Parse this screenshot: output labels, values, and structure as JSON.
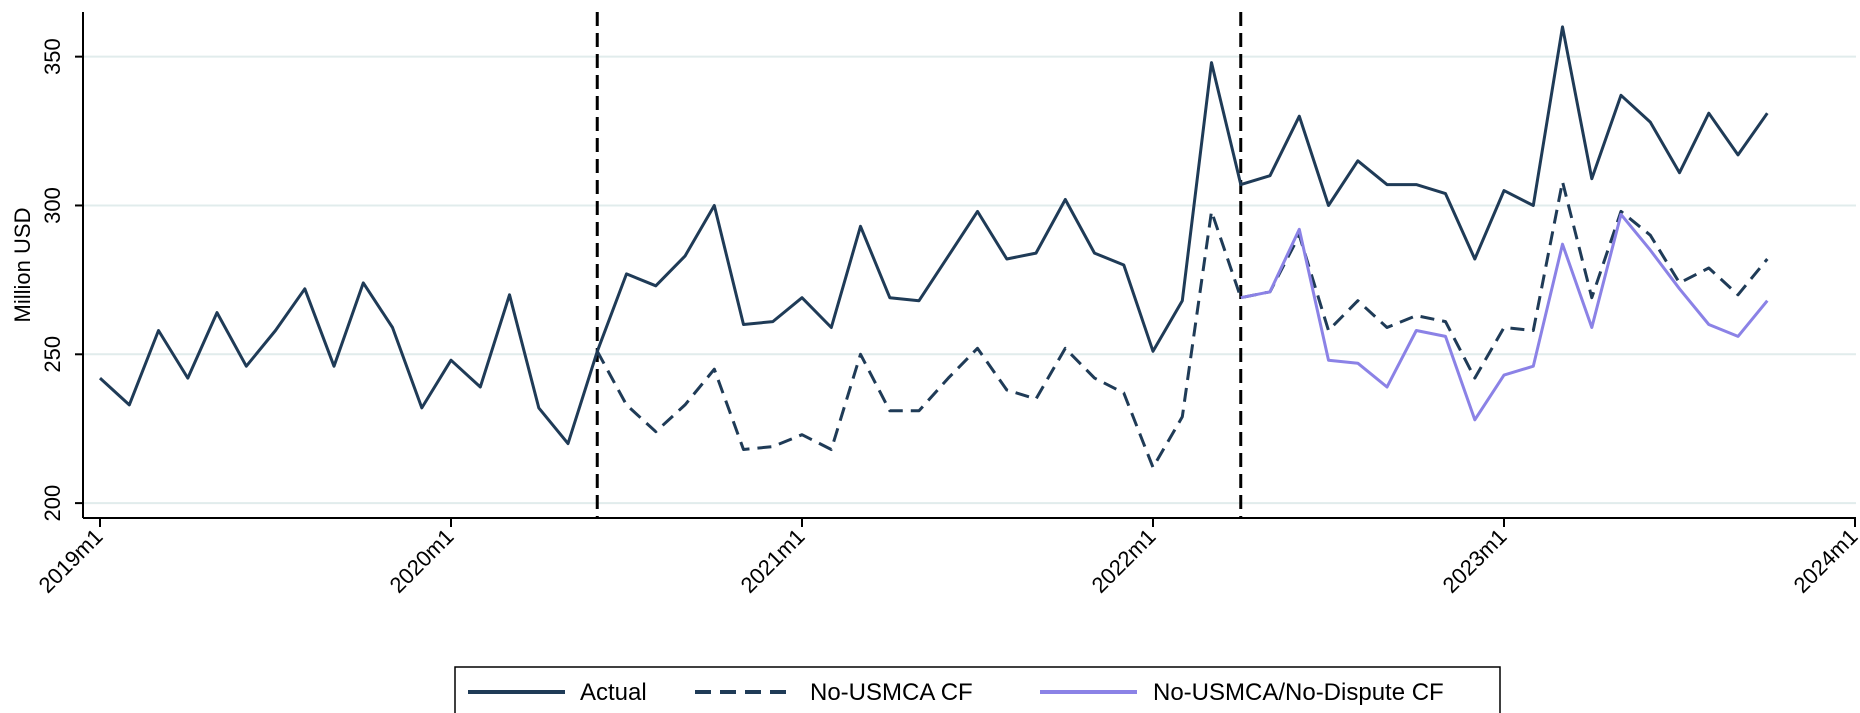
{
  "chart_data": {
    "type": "line",
    "ylabel": "Million USD",
    "xlabel": "",
    "ylim": [
      195,
      365
    ],
    "yticks": [
      200,
      250,
      300,
      350
    ],
    "xticks": [
      "2019m1",
      "2020m1",
      "2021m1",
      "2022m1",
      "2023m1",
      "2024m1"
    ],
    "xlim": [
      "2019m1",
      "2024m1"
    ],
    "grid": true,
    "legend_position": "bottom",
    "vertical_lines": [
      "2020m6",
      "2022m4"
    ],
    "series": [
      {
        "name": "Actual",
        "style": "solid",
        "color": "#1f3b57",
        "x": [
          "2019m1",
          "2019m2",
          "2019m3",
          "2019m4",
          "2019m5",
          "2019m6",
          "2019m7",
          "2019m8",
          "2019m9",
          "2019m10",
          "2019m11",
          "2019m12",
          "2020m1",
          "2020m2",
          "2020m3",
          "2020m4",
          "2020m5",
          "2020m6",
          "2020m7",
          "2020m8",
          "2020m9",
          "2020m10",
          "2020m11",
          "2020m12",
          "2021m1",
          "2021m2",
          "2021m3",
          "2021m4",
          "2021m5",
          "2021m6",
          "2021m7",
          "2021m8",
          "2021m9",
          "2021m10",
          "2021m11",
          "2021m12",
          "2022m1",
          "2022m2",
          "2022m3",
          "2022m4",
          "2022m5",
          "2022m6",
          "2022m7",
          "2022m8",
          "2022m9",
          "2022m10",
          "2022m11",
          "2022m12",
          "2023m1",
          "2023m2",
          "2023m3",
          "2023m4",
          "2023m5",
          "2023m6",
          "2023m7",
          "2023m8",
          "2023m9",
          "2023m10"
        ],
        "values": [
          242,
          233,
          258,
          242,
          264,
          246,
          258,
          272,
          246,
          274,
          259,
          232,
          248,
          239,
          270,
          232,
          220,
          251,
          277,
          273,
          283,
          300,
          260,
          261,
          269,
          259,
          293,
          269,
          268,
          283,
          298,
          282,
          284,
          302,
          284,
          280,
          251,
          268,
          348,
          307,
          310,
          330,
          300,
          315,
          307,
          307,
          304,
          282,
          305,
          300,
          360,
          309,
          337,
          328,
          311,
          331,
          317,
          331
        ]
      },
      {
        "name": "No-USMCA CF",
        "style": "dashed",
        "color": "#1f3b57",
        "x": [
          "2020m6",
          "2020m7",
          "2020m8",
          "2020m9",
          "2020m10",
          "2020m11",
          "2020m12",
          "2021m1",
          "2021m2",
          "2021m3",
          "2021m4",
          "2021m5",
          "2021m6",
          "2021m7",
          "2021m8",
          "2021m9",
          "2021m10",
          "2021m11",
          "2021m12",
          "2022m1",
          "2022m2",
          "2022m3",
          "2022m4",
          "2022m5",
          "2022m6",
          "2022m7",
          "2022m8",
          "2022m9",
          "2022m10",
          "2022m11",
          "2022m12",
          "2023m1",
          "2023m2",
          "2023m3",
          "2023m4",
          "2023m5",
          "2023m6",
          "2023m7",
          "2023m8",
          "2023m9",
          "2023m10"
        ],
        "values": [
          251,
          233,
          224,
          233,
          245,
          218,
          219,
          223,
          218,
          250,
          231,
          231,
          242,
          252,
          238,
          235,
          252,
          242,
          237,
          212,
          229,
          298,
          269,
          271,
          290,
          258,
          268,
          259,
          263,
          261,
          242,
          259,
          258,
          308,
          269,
          298,
          290,
          274,
          279,
          270,
          282
        ]
      },
      {
        "name": "No-USMCA/No-Dispute CF",
        "style": "solid",
        "color": "#8b82e6",
        "x": [
          "2022m4",
          "2022m5",
          "2022m6",
          "2022m7",
          "2022m8",
          "2022m9",
          "2022m10",
          "2022m11",
          "2022m12",
          "2023m1",
          "2023m2",
          "2023m3",
          "2023m4",
          "2023m5",
          "2023m6",
          "2023m7",
          "2023m8",
          "2023m9",
          "2023m10"
        ],
        "values": [
          269,
          271,
          292,
          248,
          247,
          239,
          258,
          256,
          228,
          243,
          246,
          287,
          259,
          297,
          285,
          272,
          260,
          256,
          268
        ]
      }
    ]
  }
}
